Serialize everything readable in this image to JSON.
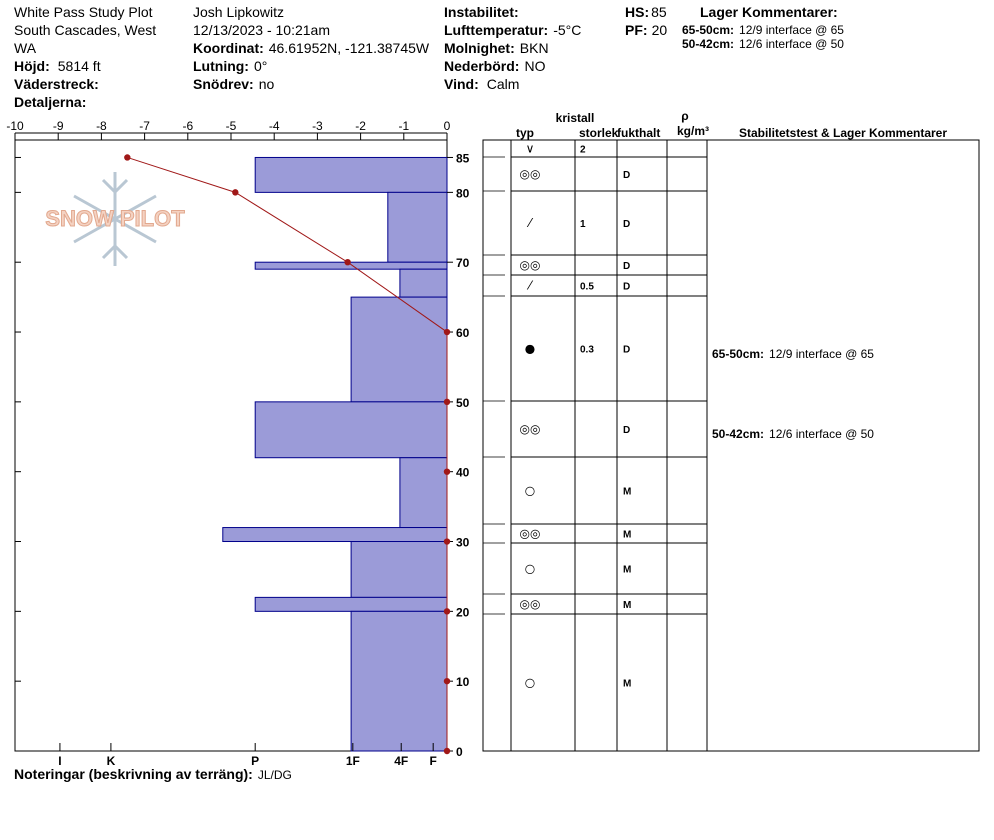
{
  "header": {
    "site": "White Pass Study Plot",
    "location": "South Cascades, West",
    "state": "WA",
    "elevation": {
      "label": "Höjd:",
      "value": "5814 ft"
    },
    "aspect": {
      "label": "Väderstreck:"
    },
    "details": {
      "label": "Detaljerna:"
    },
    "observer": "Josh Lipkowitz",
    "datetime": "12/13/2023 - 10:21am",
    "coordinates": {
      "label": "Koordinat:",
      "value": "46.61952N, -121.38745W"
    },
    "slope": {
      "label": "Lutning:",
      "value": "0°"
    },
    "wind_loading": {
      "label": "Snödrev:",
      "value": "no"
    },
    "instability": {
      "label": "Instabilitet:"
    },
    "air_temp": {
      "label": "Lufttemperatur:",
      "value": "-5°C"
    },
    "sky": {
      "label": "Molnighet:",
      "value": "BKN"
    },
    "precip": {
      "label": "Nederbörd:",
      "value": "NO"
    },
    "wind": {
      "label": "Vind:",
      "value": "Calm"
    },
    "hs": {
      "label": "HS:",
      "value": "85"
    },
    "pf": {
      "label": "PF:",
      "value": "20"
    },
    "layer_comments": {
      "title": "Lager Kommentarer:",
      "items": [
        {
          "range": "65-50cm:",
          "text": "12/9 interface @ 65"
        },
        {
          "range": "50-42cm:",
          "text": "12/6 interface @ 50"
        }
      ]
    }
  },
  "logo": "SNOW PILOT",
  "chart_data": {
    "type": "snow-profile",
    "ylim": [
      0,
      87.5
    ],
    "yticks": [
      0,
      10,
      20,
      30,
      40,
      50,
      60,
      70,
      80,
      85
    ],
    "hardness": {
      "color": "#9b9bd8",
      "xlim": [
        0,
        100
      ],
      "xticks": [
        {
          "value": 89.6,
          "label": "I"
        },
        {
          "value": 77.8,
          "label": "K"
        },
        {
          "value": 44.4,
          "label": "P"
        },
        {
          "value": 21.8,
          "label": "1F"
        },
        {
          "value": 10.6,
          "label": "4F"
        },
        {
          "value": 3.2,
          "label": "F"
        }
      ],
      "top": [
        85,
        80,
        70,
        69,
        65,
        50,
        42,
        32,
        30,
        22,
        20
      ],
      "bottom": [
        80,
        70,
        69,
        65,
        50,
        42,
        32,
        30,
        22,
        20,
        0
      ],
      "values": [
        44.4,
        13.7,
        44.4,
        10.9,
        22.2,
        44.4,
        10.9,
        51.9,
        22.2,
        44.4,
        22.2
      ]
    },
    "temperature": {
      "color": "#a01818",
      "xlim": [
        -10,
        0
      ],
      "xticks": [
        -10,
        -9,
        -8,
        -7,
        -6,
        -5,
        -4,
        -3,
        -2,
        -1,
        0
      ],
      "depth": [
        85,
        80,
        70,
        60,
        50,
        40,
        30,
        20,
        10,
        0
      ],
      "values": [
        -7.4,
        -4.9,
        -2.3,
        0,
        0,
        0,
        0,
        0,
        0,
        0
      ]
    }
  },
  "table": {
    "headers": {
      "crystal": "kristall",
      "type": "typ",
      "size": "storlek",
      "moisture": "fukthalt",
      "density": "ρ",
      "density_unit": "kg/m³",
      "comments": "Stabilitetstest & Lager Kommentarer"
    },
    "rows": [
      {
        "type": "∨",
        "size": "2"
      },
      {
        "type": "◎◎",
        "moisture": "D"
      },
      {
        "type": "⁄",
        "size": "1",
        "moisture": "D"
      },
      {
        "type": "◎◎",
        "moisture": "D"
      },
      {
        "type": "⁄",
        "size": "0.5",
        "moisture": "D"
      },
      {
        "type": "●",
        "size": "0.3",
        "moisture": "D"
      },
      {
        "type": "◎◎",
        "moisture": "D"
      },
      {
        "type": "○",
        "moisture": "M"
      },
      {
        "type": "◎◎",
        "moisture": "M"
      },
      {
        "type": "○",
        "moisture": "M"
      },
      {
        "type": "◎◎",
        "moisture": "M"
      },
      {
        "type": "○",
        "moisture": "M"
      }
    ],
    "comments": [
      {
        "range": "65-50cm:",
        "text": "12/9 interface @ 65"
      },
      {
        "range": "50-42cm:",
        "text": "12/6 interface @ 50"
      }
    ]
  },
  "notes": {
    "label": "Noteringar (beskrivning av terräng):",
    "value": "JL/DG"
  }
}
